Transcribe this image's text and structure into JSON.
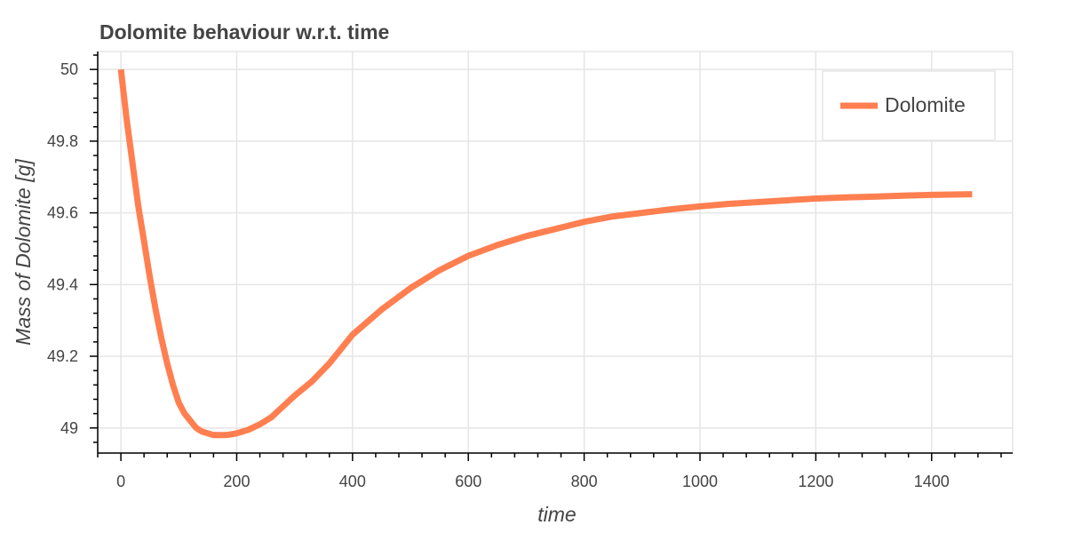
{
  "chart_data": {
    "type": "line",
    "title": "Dolomite behaviour w.r.t. time",
    "xlabel": "time",
    "ylabel": "Mass of Dolomite [g]",
    "xlim": [
      -40,
      1540
    ],
    "ylim": [
      48.93,
      50.05
    ],
    "x_ticks": [
      0,
      200,
      400,
      600,
      800,
      1000,
      1200,
      1400
    ],
    "x_tick_labels": [
      "0",
      "200",
      "400",
      "600",
      "800",
      "1000",
      "1200",
      "1400"
    ],
    "y_ticks": [
      49,
      49.2,
      49.4,
      49.6,
      49.8,
      50
    ],
    "y_tick_labels": [
      "49",
      "49.2",
      "49.4",
      "49.6",
      "49.8",
      "50"
    ],
    "grid": true,
    "legend_position": "top-right",
    "series": [
      {
        "name": "Dolomite",
        "color": "#ff7f50",
        "x": [
          0,
          10,
          20,
          30,
          40,
          50,
          60,
          70,
          80,
          90,
          100,
          110,
          120,
          130,
          140,
          150,
          160,
          170,
          180,
          190,
          200,
          210,
          220,
          240,
          260,
          280,
          300,
          330,
          360,
          400,
          450,
          500,
          550,
          600,
          650,
          700,
          750,
          800,
          850,
          900,
          950,
          1000,
          1050,
          1100,
          1150,
          1200,
          1250,
          1300,
          1350,
          1400,
          1470
        ],
        "y": [
          50.0,
          49.86,
          49.74,
          49.62,
          49.52,
          49.42,
          49.33,
          49.25,
          49.18,
          49.12,
          49.07,
          49.04,
          49.02,
          49.0,
          48.99,
          48.985,
          48.98,
          48.98,
          48.98,
          48.982,
          48.985,
          48.99,
          48.995,
          49.01,
          49.03,
          49.06,
          49.09,
          49.13,
          49.18,
          49.26,
          49.33,
          49.39,
          49.44,
          49.48,
          49.51,
          49.535,
          49.555,
          49.575,
          49.59,
          49.6,
          49.61,
          49.618,
          49.625,
          49.63,
          49.635,
          49.64,
          49.643,
          49.645,
          49.648,
          49.65,
          49.652
        ]
      }
    ]
  }
}
